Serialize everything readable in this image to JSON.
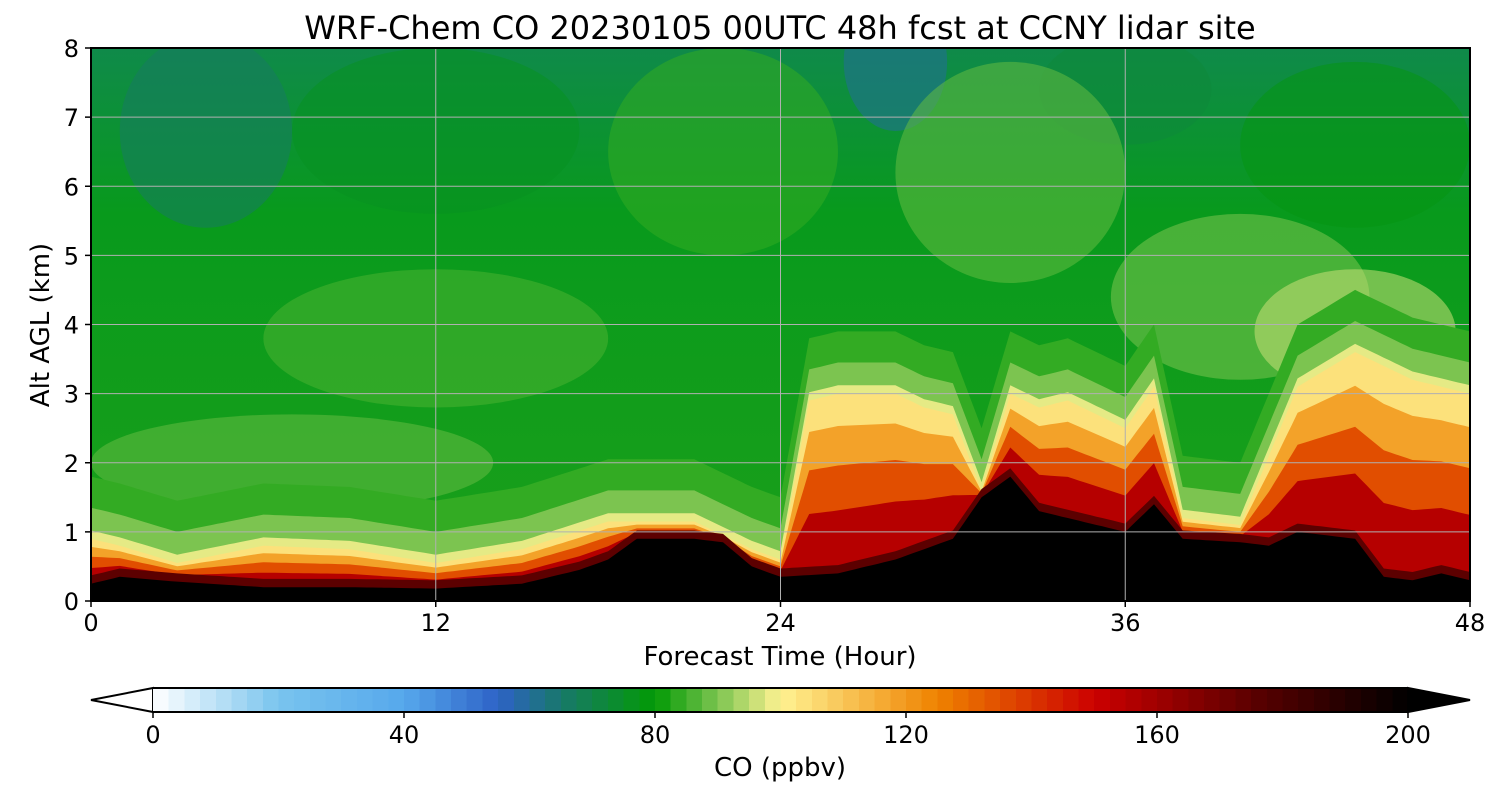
{
  "chart_data": {
    "type": "heatmap",
    "title": "WRF-Chem CO  20230105 00UTC 48h fcst at CCNY lidar site",
    "xlabel": "Forecast Time (Hour)",
    "ylabel": "Alt AGL (km)",
    "xlim": [
      0,
      48
    ],
    "ylim": [
      0,
      8
    ],
    "x_ticks": [
      0,
      12,
      24,
      36,
      48
    ],
    "y_ticks": [
      0,
      1,
      2,
      3,
      4,
      5,
      6,
      7,
      8
    ],
    "grid": true,
    "colorbar": {
      "label": "CO  (ppbv)",
      "range": [
        0,
        200
      ],
      "ticks": [
        0,
        40,
        80,
        120,
        160,
        200
      ],
      "extend": "both",
      "levels_step": 2.5,
      "stops": [
        {
          "value": 0,
          "color": "#ffffff"
        },
        {
          "value": 20,
          "color": "#79c4ee"
        },
        {
          "value": 40,
          "color": "#56a8ec"
        },
        {
          "value": 55,
          "color": "#2e62c7"
        },
        {
          "value": 65,
          "color": "#18786a"
        },
        {
          "value": 80,
          "color": "#029a05"
        },
        {
          "value": 90,
          "color": "#7cc450"
        },
        {
          "value": 100,
          "color": "#fff392"
        },
        {
          "value": 125,
          "color": "#ef8200"
        },
        {
          "value": 150,
          "color": "#cc0000"
        },
        {
          "value": 175,
          "color": "#5c0000"
        },
        {
          "value": 200,
          "color": "#000000"
        }
      ],
      "under_color": "#ffffff",
      "over_color": "#000000"
    },
    "surface_layer": {
      "description_hours": [
        0,
        1,
        3,
        6,
        9,
        12,
        15,
        17,
        18,
        19,
        21,
        22,
        23,
        24,
        26,
        28,
        30,
        31,
        32,
        33,
        34,
        36,
        37,
        38,
        40,
        41,
        42,
        44,
        45,
        46,
        47,
        48
      ],
      "top_km": [
        0.25,
        0.35,
        0.28,
        0.2,
        0.2,
        0.18,
        0.25,
        0.45,
        0.6,
        0.9,
        0.9,
        0.85,
        0.5,
        0.35,
        0.4,
        0.6,
        0.9,
        1.5,
        1.8,
        1.3,
        1.2,
        1.0,
        1.4,
        0.9,
        0.85,
        0.8,
        1.0,
        0.9,
        0.35,
        0.3,
        0.4,
        0.3
      ]
    },
    "boundary_layer": {
      "hours": [
        0,
        1,
        3,
        6,
        9,
        12,
        15,
        18,
        21,
        23,
        24,
        25,
        26,
        28,
        29,
        30,
        31,
        32,
        33,
        34,
        36,
        37,
        38,
        40,
        42,
        44,
        46,
        48
      ],
      "top_km": [
        0.9,
        0.8,
        0.55,
        0.8,
        0.75,
        0.55,
        0.75,
        1.15,
        1.15,
        0.75,
        0.6,
        2.9,
        3.0,
        3.0,
        2.8,
        2.7,
        1.6,
        3.0,
        2.8,
        2.9,
        2.5,
        3.1,
        1.2,
        1.1,
        3.1,
        3.6,
        3.2,
        3.0
      ]
    },
    "annotation_note": ""
  }
}
